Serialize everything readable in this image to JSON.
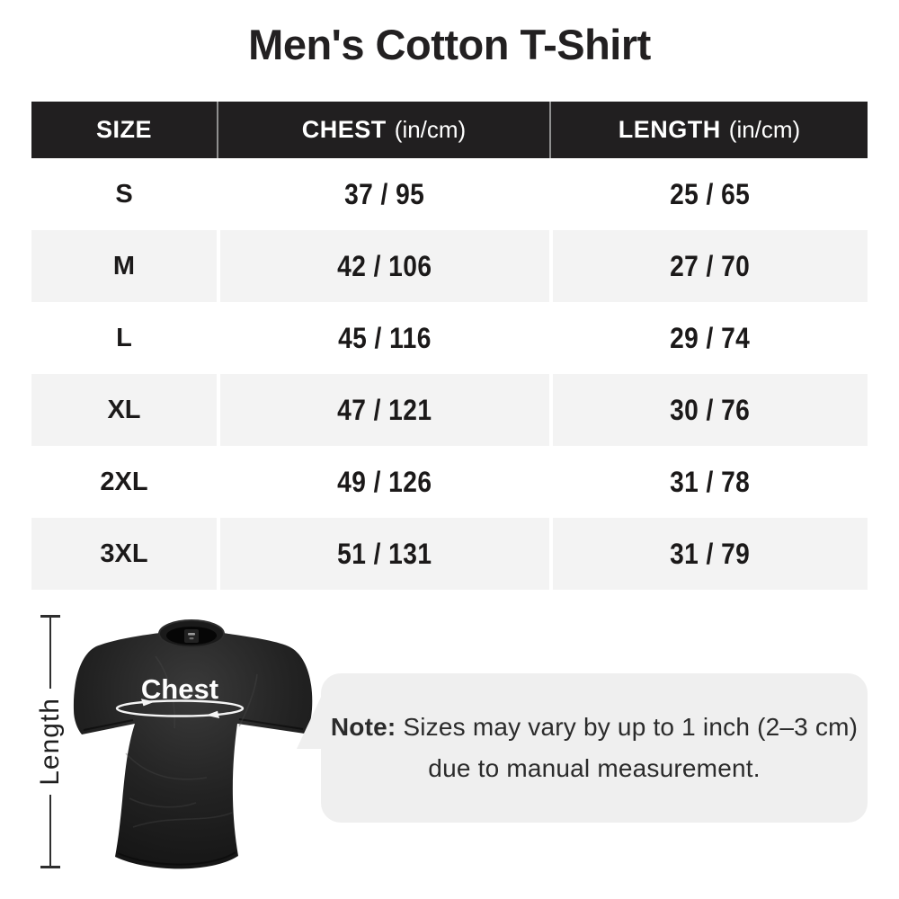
{
  "title": "Men's Cotton T-Shirt",
  "table": {
    "columns": [
      {
        "label": "SIZE",
        "unit": ""
      },
      {
        "label": "CHEST",
        "unit": "(in/cm)"
      },
      {
        "label": "LENGTH",
        "unit": "(in/cm)"
      }
    ],
    "rows": [
      {
        "size": "S",
        "chest": "37 / 95",
        "length": "25 / 65"
      },
      {
        "size": "M",
        "chest": "42 / 106",
        "length": "27 / 70"
      },
      {
        "size": "L",
        "chest": "45 / 116",
        "length": "29 / 74"
      },
      {
        "size": "XL",
        "chest": "47 / 121",
        "length": "30 / 76"
      },
      {
        "size": "2XL",
        "chest": "49 / 126",
        "length": "31 / 78"
      },
      {
        "size": "3XL",
        "chest": "51 / 131",
        "length": "31 / 79"
      }
    ]
  },
  "diagram": {
    "length_label": "Length",
    "chest_label": "Chest"
  },
  "note": {
    "prefix": "Note:",
    "line1": " Sizes may vary by up to 1 inch (2–3 cm)",
    "line2": "due to manual measurement."
  },
  "colors": {
    "header_bg": "#211f20",
    "header_text": "#ffffff",
    "row_alt_bg": "#f3f3f3",
    "body_text": "#1b1919",
    "note_bubble_bg": "#efefef",
    "shirt_color": "#141414",
    "annotation_white": "#ffffff"
  }
}
